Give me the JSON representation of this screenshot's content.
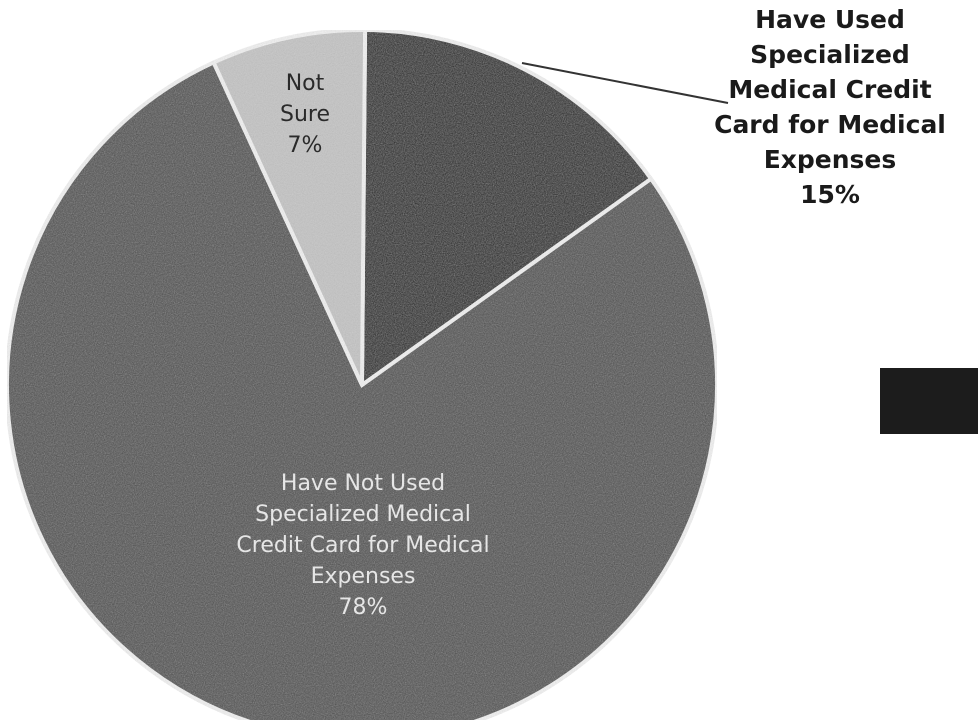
{
  "chart_data": {
    "type": "pie",
    "slices": [
      {
        "label_lines": [
          "Have Used",
          "Specialized",
          "Medical Credit",
          "Card for Medical",
          "Expenses"
        ],
        "value_label": "15%",
        "value": 15,
        "color": "#1c1c1c"
      },
      {
        "label_lines": [
          "Have Not Used",
          "Specialized Medical",
          "Credit Card for Medical",
          "Expenses"
        ],
        "value_label": "78%",
        "value": 78,
        "color": "#4d4d4d"
      },
      {
        "label_lines": [
          "Not",
          "Sure"
        ],
        "value_label": "7%",
        "value": 7,
        "color": "#c4c4c4"
      }
    ],
    "legend_swatch_color": "#1c1c1c"
  }
}
